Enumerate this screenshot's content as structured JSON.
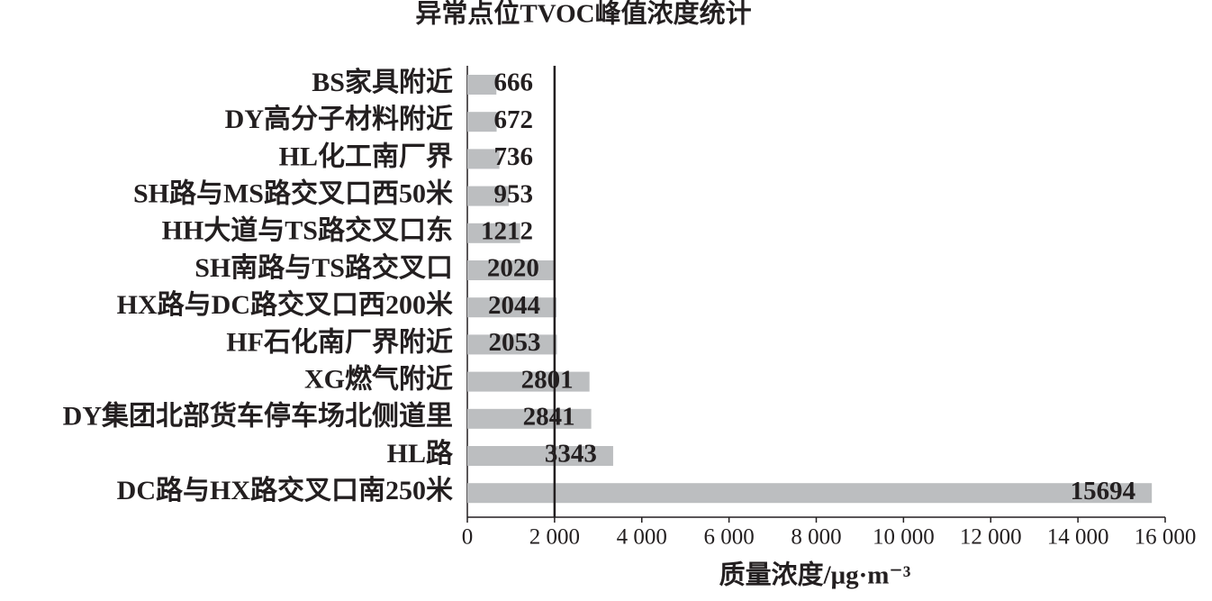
{
  "chart_data": {
    "type": "bar",
    "orientation": "horizontal",
    "title": "异常点位TVOC峰值浓度统计",
    "x_label": "质量浓度/μg·m⁻³",
    "categories": [
      "BS家具附近",
      "DY高分子材料附近",
      "HL化工南厂界",
      "SH路与MS路交叉口西50米",
      "HH大道与TS路交叉口东",
      "SH南路与TS路交叉口",
      "HX路与DC路交叉口西200米",
      "HF石化南厂界附近",
      "XG燃气附近",
      "DY集团北部货车停车场北侧道里",
      "HL路",
      "DC路与HX路交叉口南250米"
    ],
    "values": [
      666,
      672,
      736,
      953,
      1212,
      2020,
      2044,
      2053,
      2801,
      2841,
      3343,
      15694
    ],
    "color": "#bcbec0",
    "reference_line": 2000,
    "xlim": [
      0,
      16000
    ],
    "xticks": [
      0,
      {
        "value": 2000,
        "label": "2 000"
      },
      {
        "value": 4000,
        "label": "4 000"
      },
      {
        "value": 6000,
        "label": "6 000"
      },
      {
        "value": 8000,
        "label": "8 000"
      },
      {
        "value": 10000,
        "label": "10 000"
      },
      {
        "value": 12000,
        "label": "12 000"
      },
      {
        "value": 14000,
        "label": "14 000"
      },
      {
        "value": 16000,
        "label": "16 000"
      }
    ]
  }
}
